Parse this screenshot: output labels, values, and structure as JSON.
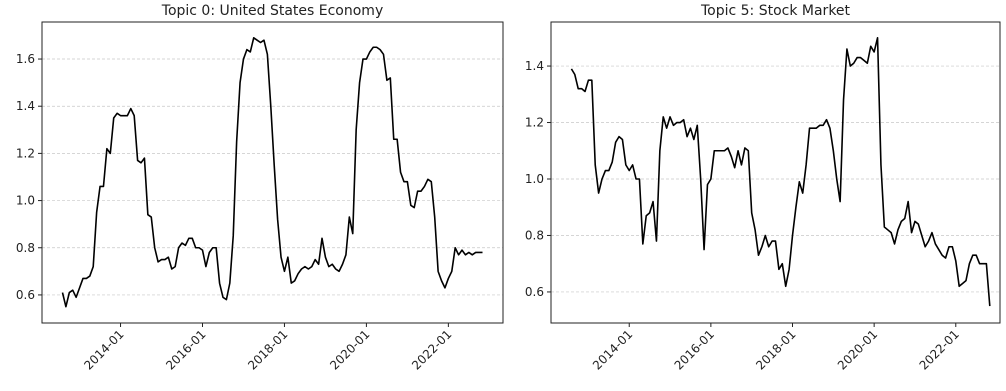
{
  "chart_data": [
    {
      "type": "line",
      "title": "Topic 0: United States Economy",
      "x": [
        "2012-08",
        "2012-09",
        "2012-10",
        "2012-11",
        "2012-12",
        "2013-01",
        "2013-02",
        "2013-03",
        "2013-04",
        "2013-05",
        "2013-06",
        "2013-07",
        "2013-08",
        "2013-09",
        "2013-10",
        "2013-11",
        "2013-12",
        "2014-01",
        "2014-02",
        "2014-03",
        "2014-04",
        "2014-05",
        "2014-06",
        "2014-07",
        "2014-08",
        "2014-09",
        "2014-10",
        "2014-11",
        "2014-12",
        "2015-01",
        "2015-02",
        "2015-03",
        "2015-04",
        "2015-05",
        "2015-06",
        "2015-07",
        "2015-08",
        "2015-09",
        "2015-10",
        "2015-11",
        "2015-12",
        "2016-01",
        "2016-02",
        "2016-03",
        "2016-04",
        "2016-05",
        "2016-06",
        "2016-07",
        "2016-08",
        "2016-09",
        "2016-10",
        "2016-11",
        "2016-12",
        "2017-01",
        "2017-02",
        "2017-03",
        "2017-04",
        "2017-05",
        "2017-06",
        "2017-07",
        "2017-08",
        "2017-09",
        "2017-10",
        "2017-11",
        "2017-12",
        "2018-01",
        "2018-02",
        "2018-03",
        "2018-04",
        "2018-05",
        "2018-06",
        "2018-07",
        "2018-08",
        "2018-09",
        "2018-10",
        "2018-11",
        "2018-12",
        "2019-01",
        "2019-02",
        "2019-03",
        "2019-04",
        "2019-05",
        "2019-06",
        "2019-07",
        "2019-08",
        "2019-09",
        "2019-10",
        "2019-11",
        "2019-12",
        "2020-01",
        "2020-02",
        "2020-03",
        "2020-04",
        "2020-05",
        "2020-06",
        "2020-07",
        "2020-08",
        "2020-09",
        "2020-10",
        "2020-11",
        "2020-12",
        "2021-01",
        "2021-02",
        "2021-03",
        "2021-04",
        "2021-05",
        "2021-06",
        "2021-07",
        "2021-08",
        "2021-09",
        "2021-10",
        "2021-11",
        "2021-12",
        "2022-01",
        "2022-02",
        "2022-03",
        "2022-04",
        "2022-05",
        "2022-06",
        "2022-07",
        "2022-08",
        "2022-09",
        "2022-10",
        "2022-11"
      ],
      "series": [
        {
          "color": "#000000",
          "values": [
            0.61,
            0.55,
            0.61,
            0.62,
            0.59,
            0.63,
            0.67,
            0.67,
            0.68,
            0.72,
            0.95,
            1.06,
            1.06,
            1.22,
            1.2,
            1.35,
            1.37,
            1.36,
            1.36,
            1.36,
            1.39,
            1.36,
            1.17,
            1.16,
            1.18,
            0.94,
            0.93,
            0.8,
            0.74,
            0.75,
            0.75,
            0.76,
            0.71,
            0.72,
            0.8,
            0.82,
            0.81,
            0.84,
            0.84,
            0.8,
            0.8,
            0.79,
            0.72,
            0.78,
            0.8,
            0.8,
            0.65,
            0.59,
            0.58,
            0.65,
            0.85,
            1.25,
            1.5,
            1.6,
            1.64,
            1.63,
            1.69,
            1.68,
            1.67,
            1.68,
            1.62,
            1.4,
            1.15,
            0.92,
            0.76,
            0.7,
            0.76,
            0.65,
            0.66,
            0.69,
            0.71,
            0.72,
            0.71,
            0.72,
            0.75,
            0.73,
            0.84,
            0.76,
            0.72,
            0.73,
            0.71,
            0.7,
            0.73,
            0.77,
            0.93,
            0.86,
            1.3,
            1.5,
            1.6,
            1.6,
            1.63,
            1.65,
            1.65,
            1.64,
            1.62,
            1.51,
            1.52,
            1.26,
            1.26,
            1.12,
            1.08,
            1.08,
            0.98,
            0.97,
            1.04,
            1.04,
            1.06,
            1.09,
            1.08,
            0.93,
            0.7,
            0.66,
            0.63,
            0.67,
            0.7,
            0.8,
            0.77,
            0.79,
            0.77,
            0.78,
            0.77,
            0.78,
            0.78,
            0.78
          ]
        }
      ],
      "xlim": [
        "2012-02",
        "2023-05"
      ],
      "xticks": [
        "2014-01",
        "2016-01",
        "2018-01",
        "2020-01",
        "2022-01"
      ],
      "ylim": [
        0.481,
        1.757
      ],
      "yticks": [
        0.6,
        0.8,
        {
          "value": 1,
          "label": "1.0"
        },
        1.2,
        1.4,
        1.6
      ],
      "grid": true
    },
    {
      "type": "line",
      "title": "Topic 5: Stock Market",
      "x": [
        "2012-08",
        "2012-09",
        "2012-10",
        "2012-11",
        "2012-12",
        "2013-01",
        "2013-02",
        "2013-03",
        "2013-04",
        "2013-05",
        "2013-06",
        "2013-07",
        "2013-08",
        "2013-09",
        "2013-10",
        "2013-11",
        "2013-12",
        "2014-01",
        "2014-02",
        "2014-03",
        "2014-04",
        "2014-05",
        "2014-06",
        "2014-07",
        "2014-08",
        "2014-09",
        "2014-10",
        "2014-11",
        "2014-12",
        "2015-01",
        "2015-02",
        "2015-03",
        "2015-04",
        "2015-05",
        "2015-06",
        "2015-07",
        "2015-08",
        "2015-09",
        "2015-10",
        "2015-11",
        "2015-12",
        "2016-01",
        "2016-02",
        "2016-03",
        "2016-04",
        "2016-05",
        "2016-06",
        "2016-07",
        "2016-08",
        "2016-09",
        "2016-10",
        "2016-11",
        "2016-12",
        "2017-01",
        "2017-02",
        "2017-03",
        "2017-04",
        "2017-05",
        "2017-06",
        "2017-07",
        "2017-08",
        "2017-09",
        "2017-10",
        "2017-11",
        "2017-12",
        "2018-01",
        "2018-02",
        "2018-03",
        "2018-04",
        "2018-05",
        "2018-06",
        "2018-07",
        "2018-08",
        "2018-09",
        "2018-10",
        "2018-11",
        "2018-12",
        "2019-01",
        "2019-02",
        "2019-03",
        "2019-04",
        "2019-05",
        "2019-06",
        "2019-07",
        "2019-08",
        "2019-09",
        "2019-10",
        "2019-11",
        "2019-12",
        "2020-01",
        "2020-02",
        "2020-03",
        "2020-04",
        "2020-05",
        "2020-06",
        "2020-07",
        "2020-08",
        "2020-09",
        "2020-10",
        "2020-11",
        "2020-12",
        "2021-01",
        "2021-02",
        "2021-03",
        "2021-04",
        "2021-05",
        "2021-06",
        "2021-07",
        "2021-08",
        "2021-09",
        "2021-10",
        "2021-11",
        "2021-12",
        "2022-01",
        "2022-02",
        "2022-03",
        "2022-04",
        "2022-05",
        "2022-06",
        "2022-07",
        "2022-08",
        "2022-09",
        "2022-10",
        "2022-11"
      ],
      "series": [
        {
          "color": "#000000",
          "values": [
            1.39,
            1.37,
            1.32,
            1.32,
            1.31,
            1.35,
            1.35,
            1.05,
            0.95,
            1.0,
            1.03,
            1.03,
            1.06,
            1.13,
            1.15,
            1.14,
            1.05,
            1.03,
            1.05,
            1.0,
            1.0,
            0.77,
            0.87,
            0.88,
            0.92,
            0.78,
            1.1,
            1.22,
            1.18,
            1.22,
            1.19,
            1.2,
            1.2,
            1.21,
            1.15,
            1.18,
            1.14,
            1.19,
            1.0,
            0.75,
            0.98,
            1.0,
            1.1,
            1.1,
            1.1,
            1.1,
            1.11,
            1.08,
            1.04,
            1.1,
            1.05,
            1.11,
            1.1,
            0.88,
            0.82,
            0.73,
            0.76,
            0.8,
            0.76,
            0.78,
            0.78,
            0.68,
            0.7,
            0.62,
            0.68,
            0.8,
            0.9,
            0.99,
            0.95,
            1.05,
            1.18,
            1.18,
            1.18,
            1.19,
            1.19,
            1.21,
            1.18,
            1.1,
            1.0,
            0.92,
            1.28,
            1.46,
            1.4,
            1.41,
            1.43,
            1.43,
            1.42,
            1.41,
            1.47,
            1.45,
            1.5,
            1.05,
            0.83,
            0.82,
            0.81,
            0.77,
            0.82,
            0.85,
            0.86,
            0.92,
            0.81,
            0.85,
            0.84,
            0.8,
            0.76,
            0.78,
            0.81,
            0.77,
            0.75,
            0.73,
            0.72,
            0.76,
            0.76,
            0.71,
            0.62,
            0.63,
            0.64,
            0.7,
            0.73,
            0.73,
            0.7,
            0.7,
            0.7,
            0.55
          ]
        }
      ],
      "xlim": [
        "2012-02",
        "2023-02"
      ],
      "xticks": [
        "2014-01",
        "2016-01",
        "2018-01",
        "2020-01",
        "2022-01"
      ],
      "ylim": [
        0.49,
        1.556
      ],
      "yticks": [
        0.6,
        0.8,
        {
          "value": 1,
          "label": "1.0"
        },
        1.2,
        1.4
      ],
      "grid": true
    }
  ]
}
